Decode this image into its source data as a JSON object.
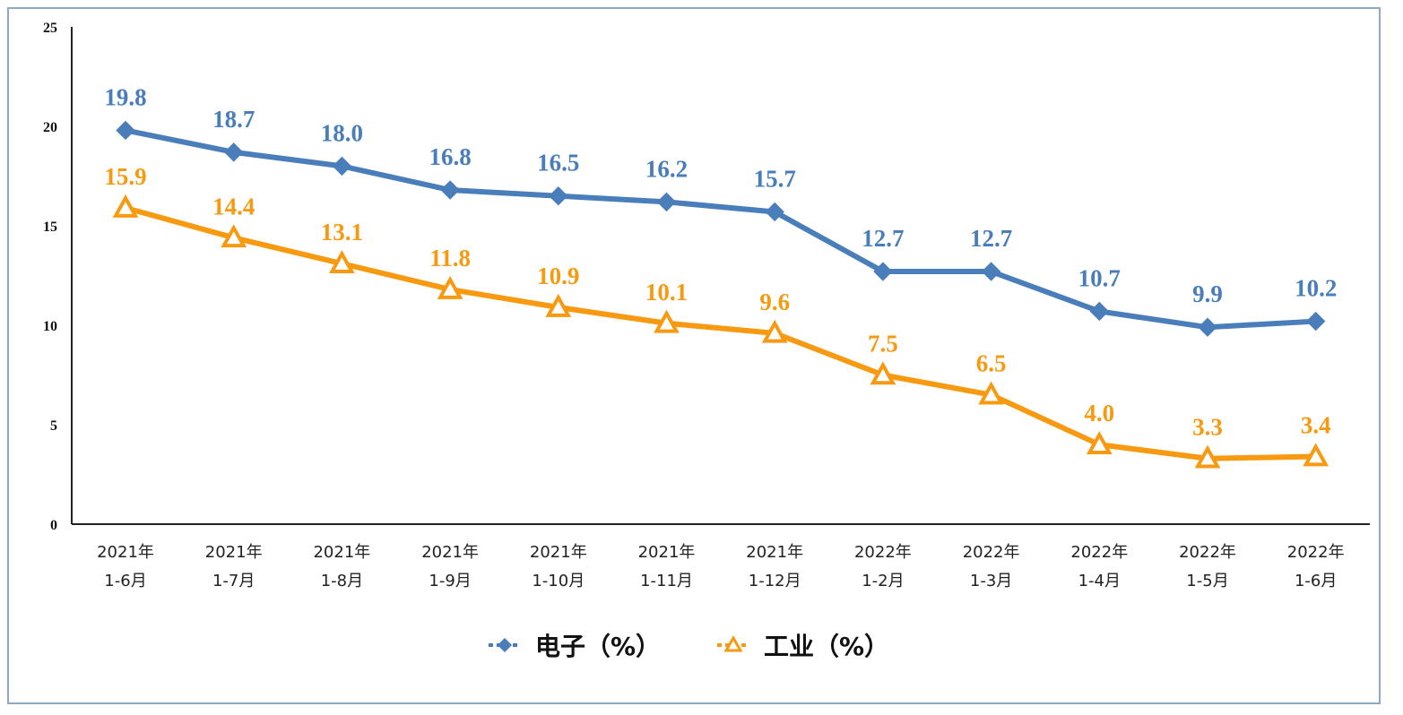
{
  "chart_data": {
    "type": "line",
    "categories": [
      [
        "2021年",
        "1-6月"
      ],
      [
        "2021年",
        "1-7月"
      ],
      [
        "2021年",
        "1-8月"
      ],
      [
        "2021年",
        "1-9月"
      ],
      [
        "2021年",
        "1-10月"
      ],
      [
        "2021年",
        "1-11月"
      ],
      [
        "2021年",
        "1-12月"
      ],
      [
        "2022年",
        "1-2月"
      ],
      [
        "2022年",
        "1-3月"
      ],
      [
        "2022年",
        "1-4月"
      ],
      [
        "2022年",
        "1-5月"
      ],
      [
        "2022年",
        "1-6月"
      ]
    ],
    "series": [
      {
        "name": "电子（%）",
        "color": "#4a7ebb",
        "marker": "diamond",
        "values": [
          19.8,
          18.7,
          18.0,
          16.8,
          16.5,
          16.2,
          15.7,
          12.7,
          12.7,
          10.7,
          9.9,
          10.2
        ],
        "labels": [
          "19.8",
          "18.7",
          "18.0",
          "16.8",
          "16.5",
          "16.2",
          "15.7",
          "12.7",
          "12.7",
          "10.7",
          "9.9",
          "10.2"
        ]
      },
      {
        "name": "工业（%）",
        "color": "#f79a11",
        "marker": "triangle",
        "values": [
          15.9,
          14.4,
          13.1,
          11.8,
          10.9,
          10.1,
          9.6,
          7.5,
          6.5,
          4.0,
          3.3,
          3.4
        ],
        "labels": [
          "15.9",
          "14.4",
          "13.1",
          "11.8",
          "10.9",
          "10.1",
          "9.6",
          "7.5",
          "6.5",
          "4.0",
          "3.3",
          "3.4"
        ]
      }
    ],
    "ylim": [
      0,
      25
    ],
    "yticks": [
      "0",
      "5",
      "10",
      "15",
      "20",
      "25"
    ],
    "grid": false,
    "legend_position": "bottom-center"
  }
}
